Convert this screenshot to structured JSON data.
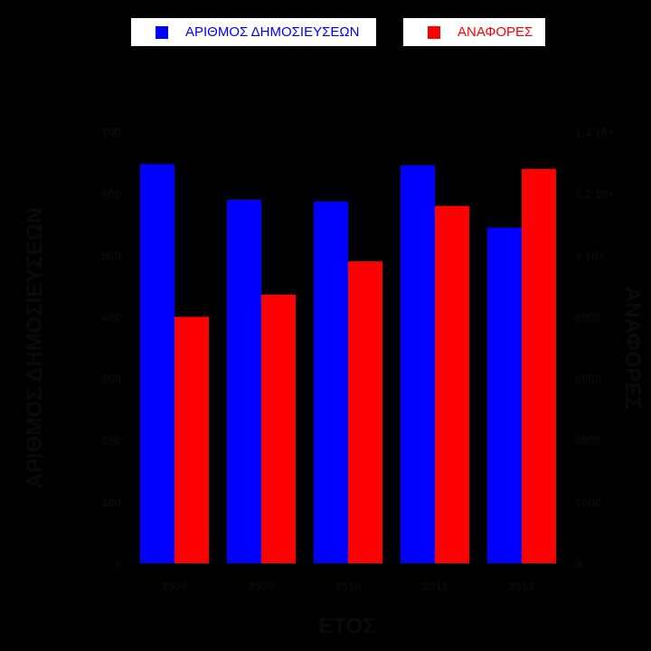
{
  "chart_data": {
    "type": "bar",
    "xlabel": "ΕΤΟΣ",
    "ylabel": "ΑΡΙΘΜΟΣ ΔΗΜΟΣΙΕΥΣΕΩΝ",
    "y2label": "ΑΝΑΦΟΡΕΣ",
    "categories": [
      "2008",
      "2009",
      "2010",
      "2011",
      "2012"
    ],
    "ylim": [
      0,
      700
    ],
    "y2lim": [
      0,
      14000
    ],
    "yticks": [
      "0",
      "100",
      "200",
      "300",
      "400",
      "500",
      "600",
      "700"
    ],
    "y2ticks": [
      "0",
      "2000",
      "4000",
      "6000",
      "8000",
      "1 10⁴",
      "1,2 10⁴",
      "1,4 10⁴"
    ],
    "series": [
      {
        "name": "ΑΡΙΘΜΟΣ ΔΗΜΟΣΙΕΥΣΕΩΝ",
        "axis": "left",
        "color": "#0000ff",
        "values": [
          648,
          590,
          587,
          646,
          545
        ]
      },
      {
        "name": "ΑΝΑΦΟΡΕΣ",
        "axis": "right",
        "color": "#ff0000",
        "values": [
          8000,
          8720,
          9800,
          11600,
          12800
        ]
      }
    ],
    "legend_position": "top",
    "grid": false
  }
}
